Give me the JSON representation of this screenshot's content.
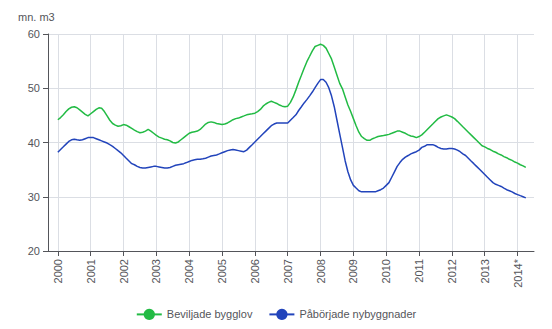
{
  "chart_data": {
    "type": "line",
    "ylabel": "mn. m3",
    "xlim": [
      1999.7,
      2014.5
    ],
    "xticks": [
      2000,
      2001,
      2002,
      2003,
      2004,
      2005,
      2006,
      2007,
      2008,
      2009,
      2010,
      2011,
      2012,
      2013,
      {
        "value": 2014,
        "label": "2014*"
      }
    ],
    "ylim": [
      20,
      60
    ],
    "yticks": [
      20,
      30,
      40,
      50,
      60
    ],
    "grid": true,
    "legend": "bottom",
    "x": [
      2000.0,
      2000.083,
      2000.167,
      2000.25,
      2000.333,
      2000.417,
      2000.5,
      2000.583,
      2000.667,
      2000.75,
      2000.833,
      2000.917,
      2001.0,
      2001.083,
      2001.167,
      2001.25,
      2001.333,
      2001.417,
      2001.5,
      2001.583,
      2001.667,
      2001.75,
      2001.833,
      2001.917,
      2002.0,
      2002.083,
      2002.167,
      2002.25,
      2002.333,
      2002.417,
      2002.5,
      2002.583,
      2002.667,
      2002.75,
      2002.833,
      2002.917,
      2003.0,
      2003.083,
      2003.167,
      2003.25,
      2003.333,
      2003.417,
      2003.5,
      2003.583,
      2003.667,
      2003.75,
      2003.833,
      2003.917,
      2004.0,
      2004.083,
      2004.167,
      2004.25,
      2004.333,
      2004.417,
      2004.5,
      2004.583,
      2004.667,
      2004.75,
      2004.833,
      2004.917,
      2005.0,
      2005.083,
      2005.167,
      2005.25,
      2005.333,
      2005.417,
      2005.5,
      2005.583,
      2005.667,
      2005.75,
      2005.833,
      2005.917,
      2006.0,
      2006.083,
      2006.167,
      2006.25,
      2006.333,
      2006.417,
      2006.5,
      2006.583,
      2006.667,
      2006.75,
      2006.833,
      2006.917,
      2007.0,
      2007.083,
      2007.167,
      2007.25,
      2007.333,
      2007.417,
      2007.5,
      2007.583,
      2007.667,
      2007.75,
      2007.833,
      2007.917,
      2008.0,
      2008.083,
      2008.167,
      2008.25,
      2008.333,
      2008.417,
      2008.5,
      2008.583,
      2008.667,
      2008.75,
      2008.833,
      2008.917,
      2009.0,
      2009.083,
      2009.167,
      2009.25,
      2009.333,
      2009.417,
      2009.5,
      2009.583,
      2009.667,
      2009.75,
      2009.833,
      2009.917,
      2010.0,
      2010.083,
      2010.167,
      2010.25,
      2010.333,
      2010.417,
      2010.5,
      2010.583,
      2010.667,
      2010.75,
      2010.833,
      2010.917,
      2011.0,
      2011.083,
      2011.167,
      2011.25,
      2011.333,
      2011.417,
      2011.5,
      2011.583,
      2011.667,
      2011.75,
      2011.833,
      2011.917,
      2012.0,
      2012.083,
      2012.167,
      2012.25,
      2012.333,
      2012.417,
      2012.5,
      2012.583,
      2012.667,
      2012.75,
      2012.833,
      2012.917,
      2013.0,
      2013.083,
      2013.167,
      2013.25,
      2013.333,
      2013.417,
      2013.5,
      2013.583,
      2013.667,
      2013.75,
      2013.833,
      2013.917,
      2014.0,
      2014.083,
      2014.167,
      2014.25
    ],
    "series": [
      {
        "name": "Beviljade bygglov",
        "color": "#22bb44",
        "values": [
          44.2,
          44.6,
          45.1,
          45.7,
          46.2,
          46.5,
          46.6,
          46.4,
          46.0,
          45.6,
          45.2,
          44.9,
          45.3,
          45.7,
          46.1,
          46.4,
          46.3,
          45.7,
          44.9,
          44.1,
          43.5,
          43.2,
          43.0,
          43.1,
          43.3,
          43.2,
          42.9,
          42.6,
          42.3,
          42.0,
          41.8,
          41.9,
          42.1,
          42.4,
          42.1,
          41.7,
          41.3,
          41.0,
          40.8,
          40.6,
          40.5,
          40.3,
          40.0,
          39.9,
          40.1,
          40.5,
          40.9,
          41.3,
          41.7,
          41.9,
          42.0,
          42.1,
          42.4,
          42.9,
          43.4,
          43.7,
          43.8,
          43.7,
          43.5,
          43.4,
          43.3,
          43.4,
          43.6,
          43.9,
          44.2,
          44.4,
          44.5,
          44.7,
          44.9,
          45.1,
          45.2,
          45.3,
          45.4,
          45.7,
          46.1,
          46.7,
          47.1,
          47.4,
          47.6,
          47.4,
          47.2,
          46.9,
          46.7,
          46.6,
          46.7,
          47.4,
          48.4,
          49.7,
          51.1,
          52.4,
          53.7,
          54.9,
          55.9,
          56.9,
          57.7,
          57.9,
          58.1,
          57.9,
          57.4,
          56.4,
          55.4,
          53.9,
          52.4,
          50.9,
          49.9,
          48.4,
          46.9,
          45.7,
          44.4,
          43.1,
          41.9,
          41.1,
          40.7,
          40.4,
          40.4,
          40.7,
          40.9,
          41.1,
          41.2,
          41.3,
          41.4,
          41.5,
          41.7,
          41.9,
          42.1,
          42.1,
          41.9,
          41.7,
          41.4,
          41.2,
          41.1,
          40.9,
          41.1,
          41.4,
          41.9,
          42.4,
          42.9,
          43.4,
          43.9,
          44.4,
          44.7,
          44.9,
          45.1,
          44.9,
          44.7,
          44.4,
          43.9,
          43.4,
          42.9,
          42.4,
          41.9,
          41.4,
          40.9,
          40.4,
          39.9,
          39.4,
          39.2,
          38.9,
          38.7,
          38.4,
          38.2,
          37.9,
          37.7,
          37.4,
          37.2,
          36.9,
          36.7,
          36.4,
          36.2,
          35.9,
          35.7,
          35.4
        ]
      },
      {
        "name": "Påbörjade nybyggnader",
        "color": "#2244bb",
        "values": [
          38.2,
          38.7,
          39.2,
          39.7,
          40.2,
          40.5,
          40.6,
          40.5,
          40.4,
          40.5,
          40.7,
          40.9,
          40.9,
          40.9,
          40.7,
          40.5,
          40.3,
          40.1,
          39.9,
          39.6,
          39.3,
          38.9,
          38.5,
          38.1,
          37.6,
          37.1,
          36.6,
          36.1,
          35.9,
          35.6,
          35.4,
          35.3,
          35.3,
          35.4,
          35.5,
          35.6,
          35.6,
          35.5,
          35.4,
          35.3,
          35.3,
          35.4,
          35.6,
          35.8,
          35.9,
          36.0,
          36.1,
          36.3,
          36.5,
          36.7,
          36.8,
          36.9,
          36.9,
          37.0,
          37.1,
          37.3,
          37.5,
          37.6,
          37.7,
          37.9,
          38.1,
          38.3,
          38.5,
          38.6,
          38.7,
          38.6,
          38.5,
          38.4,
          38.3,
          38.6,
          39.1,
          39.6,
          40.1,
          40.6,
          41.1,
          41.6,
          42.1,
          42.6,
          43.1,
          43.4,
          43.6,
          43.6,
          43.6,
          43.6,
          43.6,
          44.1,
          44.6,
          45.1,
          45.9,
          46.6,
          47.3,
          47.9,
          48.6,
          49.3,
          50.1,
          50.9,
          51.6,
          51.6,
          51.1,
          50.1,
          48.6,
          46.6,
          44.1,
          41.6,
          39.1,
          36.6,
          34.6,
          33.1,
          32.1,
          31.6,
          31.1,
          30.9,
          30.9,
          30.9,
          30.9,
          30.9,
          30.9,
          31.1,
          31.3,
          31.6,
          32.1,
          32.6,
          33.6,
          34.6,
          35.6,
          36.3,
          36.9,
          37.3,
          37.6,
          37.9,
          38.1,
          38.3,
          38.6,
          39.1,
          39.3,
          39.6,
          39.6,
          39.6,
          39.4,
          39.1,
          38.9,
          38.8,
          38.8,
          38.9,
          38.9,
          38.8,
          38.6,
          38.3,
          37.9,
          37.6,
          37.1,
          36.6,
          36.1,
          35.6,
          35.1,
          34.6,
          34.1,
          33.6,
          33.1,
          32.6,
          32.3,
          32.1,
          31.9,
          31.6,
          31.3,
          31.1,
          30.9,
          30.6,
          30.4,
          30.2,
          30.0,
          29.8
        ]
      }
    ]
  }
}
